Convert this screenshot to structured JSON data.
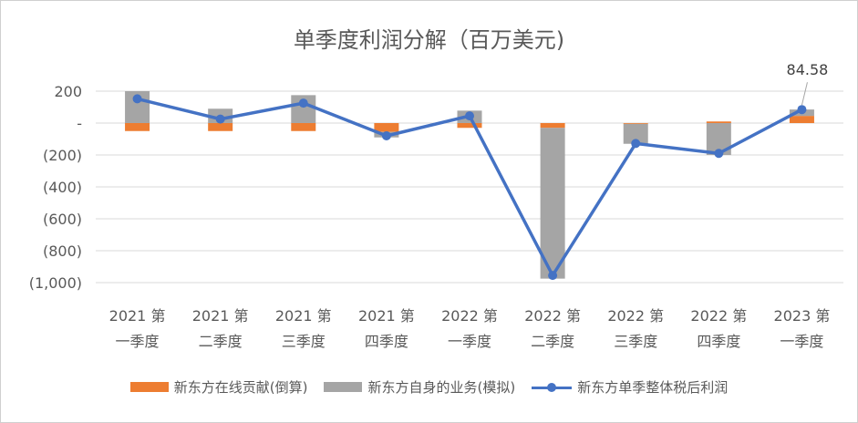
{
  "chart_data": {
    "type": "bar",
    "title": "单季度利润分解（百万美元)",
    "categories": [
      [
        "2021 第",
        "一季度"
      ],
      [
        "2021 第",
        "二季度"
      ],
      [
        "2021 第",
        "三季度"
      ],
      [
        "2021 第",
        "四季度"
      ],
      [
        "2022 第",
        "一季度"
      ],
      [
        "2022 第",
        "二季度"
      ],
      [
        "2022 第",
        "三季度"
      ],
      [
        "2022 第",
        "四季度"
      ],
      [
        "2023 第",
        "一季度"
      ]
    ],
    "y_ticks": [
      {
        "value": 200,
        "label": "200"
      },
      {
        "value": 0,
        "label": "-"
      },
      {
        "value": -200,
        "label": "(200)"
      },
      {
        "value": -400,
        "label": "(400)"
      },
      {
        "value": -600,
        "label": "(600)"
      },
      {
        "value": -800,
        "label": "(800)"
      },
      {
        "value": -1000,
        "label": "(1,000)"
      }
    ],
    "ylim": [
      -1000,
      200
    ],
    "grid": true,
    "stacked": true,
    "legend_position": "bottom",
    "series": [
      {
        "name": "新东方在线贡献(倒算)",
        "type": "bar",
        "color": "#ED7D31",
        "values": [
          -50,
          -50,
          -50,
          -55,
          -30,
          -30,
          -5,
          10,
          45
        ]
      },
      {
        "name": "新东方自身的业务(模拟)",
        "type": "bar",
        "color": "#A5A5A5",
        "values": [
          200,
          90,
          175,
          -35,
          78,
          -945,
          -125,
          -200,
          40
        ]
      },
      {
        "name": "新东方单季整体税后利润",
        "type": "line",
        "color": "#4472C4",
        "values": [
          152,
          25,
          125,
          -80,
          45,
          -955,
          -128,
          -190,
          84.58
        ]
      }
    ],
    "annotations": [
      {
        "series": 2,
        "index": 8,
        "label": "84.58"
      }
    ]
  }
}
